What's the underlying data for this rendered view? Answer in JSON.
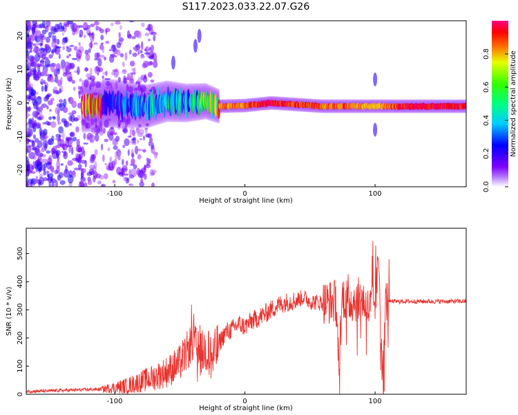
{
  "title": "S117.2023.033.22.07.G26",
  "colorbar": {
    "label": "Normalized spectral amplitude",
    "ticks": [
      0.0,
      0.2,
      0.4,
      0.6,
      0.8
    ],
    "tick_labels": [
      "0.0",
      "0.2",
      "0.4",
      "0.6",
      "0.8"
    ],
    "range": [
      0,
      1
    ]
  },
  "colors": {
    "snr_line": "#e8322e",
    "colormap": [
      "#ffffff",
      "#7f00ff",
      "#0000ff",
      "#00ffff",
      "#00ff00",
      "#ffff00",
      "#ff7f00",
      "#ff0000",
      "#ff0080"
    ]
  },
  "chart_data": [
    {
      "type": "heatmap",
      "title": "",
      "xlabel": "Height of straight line (km)",
      "ylabel": "Frequency (Hz)",
      "xlim": [
        -168,
        170
      ],
      "ylim": [
        -25,
        24.5
      ],
      "xticks": [
        -100,
        0,
        100
      ],
      "xtick_labels": [
        "-100",
        "0",
        "100"
      ],
      "yticks": [
        -20,
        -10,
        0,
        10,
        20
      ],
      "ytick_labels": [
        "-20",
        "-10",
        "0",
        "10",
        "20"
      ],
      "description_series": [
        {
          "name": "",
          "points": [
            {
              "x": -110,
              "y": 0.0,
              "amplitude": 0.25
            },
            {
              "x": -90,
              "y": -0.5,
              "amplitude": 0.35
            },
            {
              "x": -75,
              "y": -1.0,
              "amplitude": 0.4
            },
            {
              "x": -60,
              "y": 0.5,
              "amplitude": 0.45
            },
            {
              "x": -45,
              "y": 0.0,
              "amplitude": 0.4
            },
            {
              "x": -30,
              "y": 0.5,
              "amplitude": 0.6
            },
            {
              "x": -20,
              "y": -1.0,
              "amplitude": 0.75
            },
            {
              "x": 0,
              "y": -0.8,
              "amplitude": 0.8
            },
            {
              "x": 20,
              "y": 0.0,
              "amplitude": 0.95
            },
            {
              "x": 40,
              "y": -0.5,
              "amplitude": 0.85
            },
            {
              "x": 60,
              "y": -1.0,
              "amplitude": 0.8
            },
            {
              "x": 80,
              "y": -1.0,
              "amplitude": 0.8
            },
            {
              "x": 100,
              "y": -1.0,
              "amplitude": 0.7
            },
            {
              "x": 130,
              "y": -1.0,
              "amplitude": 0.95
            },
            {
              "x": 160,
              "y": -1.0,
              "amplitude": 0.9
            }
          ]
        }
      ]
    },
    {
      "type": "line",
      "title": "",
      "xlabel": "Height of straight line (km)",
      "ylabel": "SNR (10 * v/v)",
      "xlim": [
        -168,
        170
      ],
      "ylim": [
        0,
        590
      ],
      "xticks": [
        -100,
        0,
        100
      ],
      "xtick_labels": [
        "-100",
        "0",
        "100"
      ],
      "yticks": [
        0,
        100,
        200,
        300,
        400,
        500
      ],
      "ytick_labels": [
        "0",
        "100",
        "200",
        "300",
        "400",
        "500"
      ],
      "series": [
        {
          "name": "",
          "x": [
            -168,
            -150,
            -130,
            -110,
            -90,
            -80,
            -70,
            -60,
            -50,
            -45,
            -40,
            -35,
            -30,
            -25,
            -20,
            -15,
            -10,
            -5,
            0,
            5,
            10,
            15,
            20,
            25,
            30,
            35,
            40,
            45,
            50,
            60,
            70,
            72,
            75,
            80,
            90,
            95,
            100,
            103,
            106,
            108,
            110,
            120,
            140,
            160,
            170
          ],
          "y": [
            10,
            12,
            15,
            18,
            30,
            45,
            60,
            80,
            110,
            150,
            190,
            140,
            160,
            120,
            180,
            220,
            230,
            250,
            240,
            260,
            270,
            285,
            300,
            315,
            325,
            330,
            335,
            345,
            330,
            325,
            330,
            120,
            350,
            330,
            340,
            300,
            330,
            480,
            10,
            330,
            330,
            330,
            330,
            330,
            330
          ]
        }
      ]
    }
  ]
}
